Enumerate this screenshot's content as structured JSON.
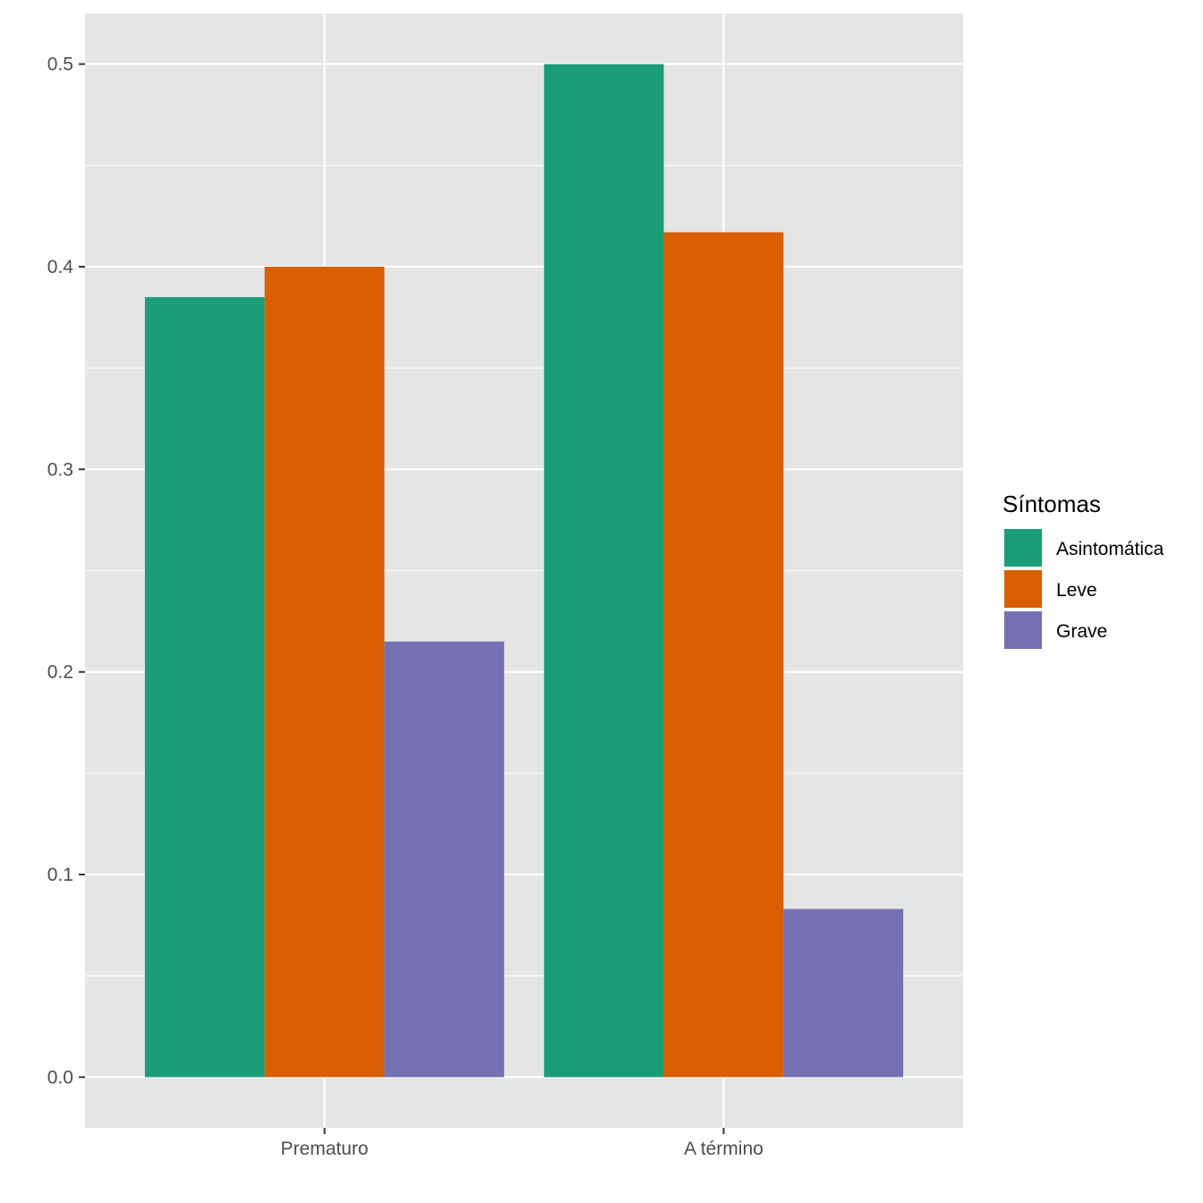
{
  "chart_data": {
    "type": "bar",
    "categories": [
      "Prematuro",
      "A término"
    ],
    "series": [
      {
        "name": "Asintomática",
        "values": [
          0.385,
          0.5
        ],
        "color": "#1b9e77"
      },
      {
        "name": "Leve",
        "values": [
          0.4,
          0.417
        ],
        "color": "#d95f02"
      },
      {
        "name": "Grave",
        "values": [
          0.215,
          0.083
        ],
        "color": "#7570b3"
      }
    ],
    "title": "",
    "xlabel": "",
    "ylabel": "",
    "ylim": [
      -0.025,
      0.525
    ],
    "y_ticks": [
      0.0,
      0.1,
      0.2,
      0.3,
      0.4,
      0.5
    ],
    "y_tick_labels": [
      "0.0",
      "0.1",
      "0.2",
      "0.3",
      "0.4",
      "0.5"
    ],
    "grid": true,
    "panel_background": "#e5e5e5",
    "legend": {
      "title": "Síntomas",
      "position": "right"
    }
  }
}
